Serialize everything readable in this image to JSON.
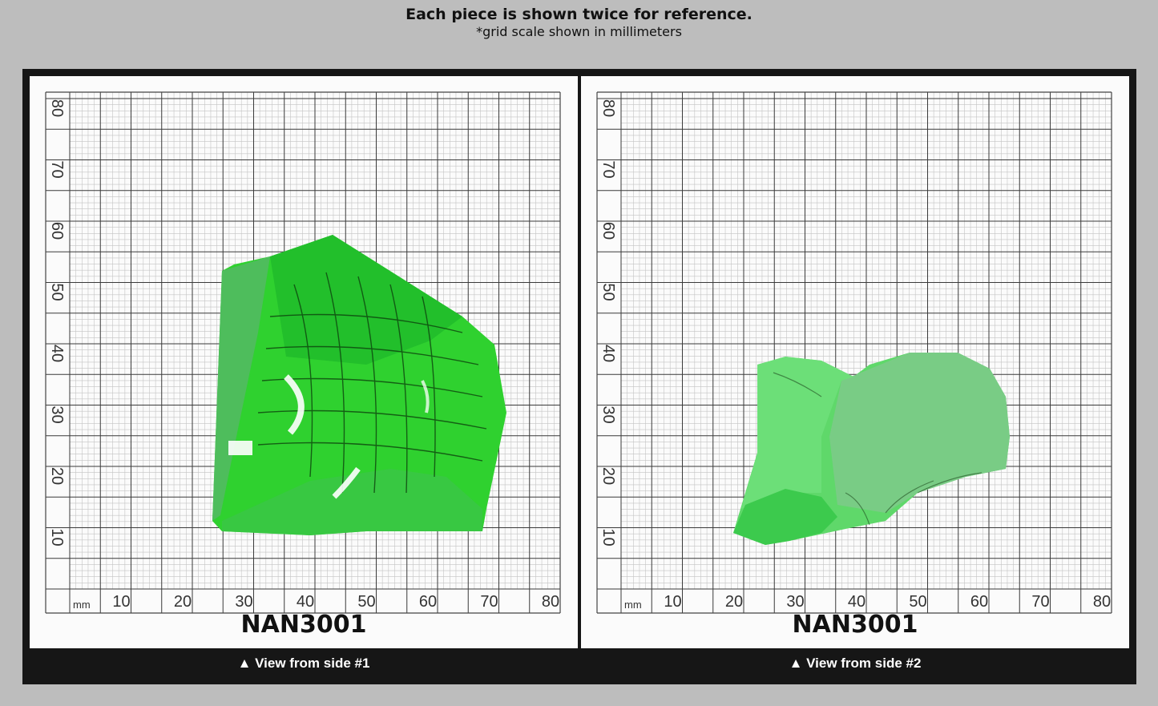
{
  "header": {
    "title": "Each piece is shown twice for reference.",
    "subtitle": "*grid scale shown in millimeters"
  },
  "colors": {
    "background": "#bdbdbd",
    "frame": "#161616",
    "grid_major": "#3a3a3a",
    "grid_minor": "#c4c4c4",
    "crystal_side1": "#2fd12f",
    "crystal_side2": "#5fd86a"
  },
  "grid": {
    "unit_label": "mm",
    "x_ticks": [
      "10",
      "20",
      "30",
      "40",
      "50",
      "60",
      "70",
      "80"
    ],
    "y_ticks": [
      "10",
      "20",
      "30",
      "40",
      "50",
      "60",
      "70",
      "80"
    ]
  },
  "panels": [
    {
      "piece_id": "NAN3001",
      "caption": "▲ View from side #1"
    },
    {
      "piece_id": "NAN3001",
      "caption": "▲ View from side #2"
    }
  ]
}
